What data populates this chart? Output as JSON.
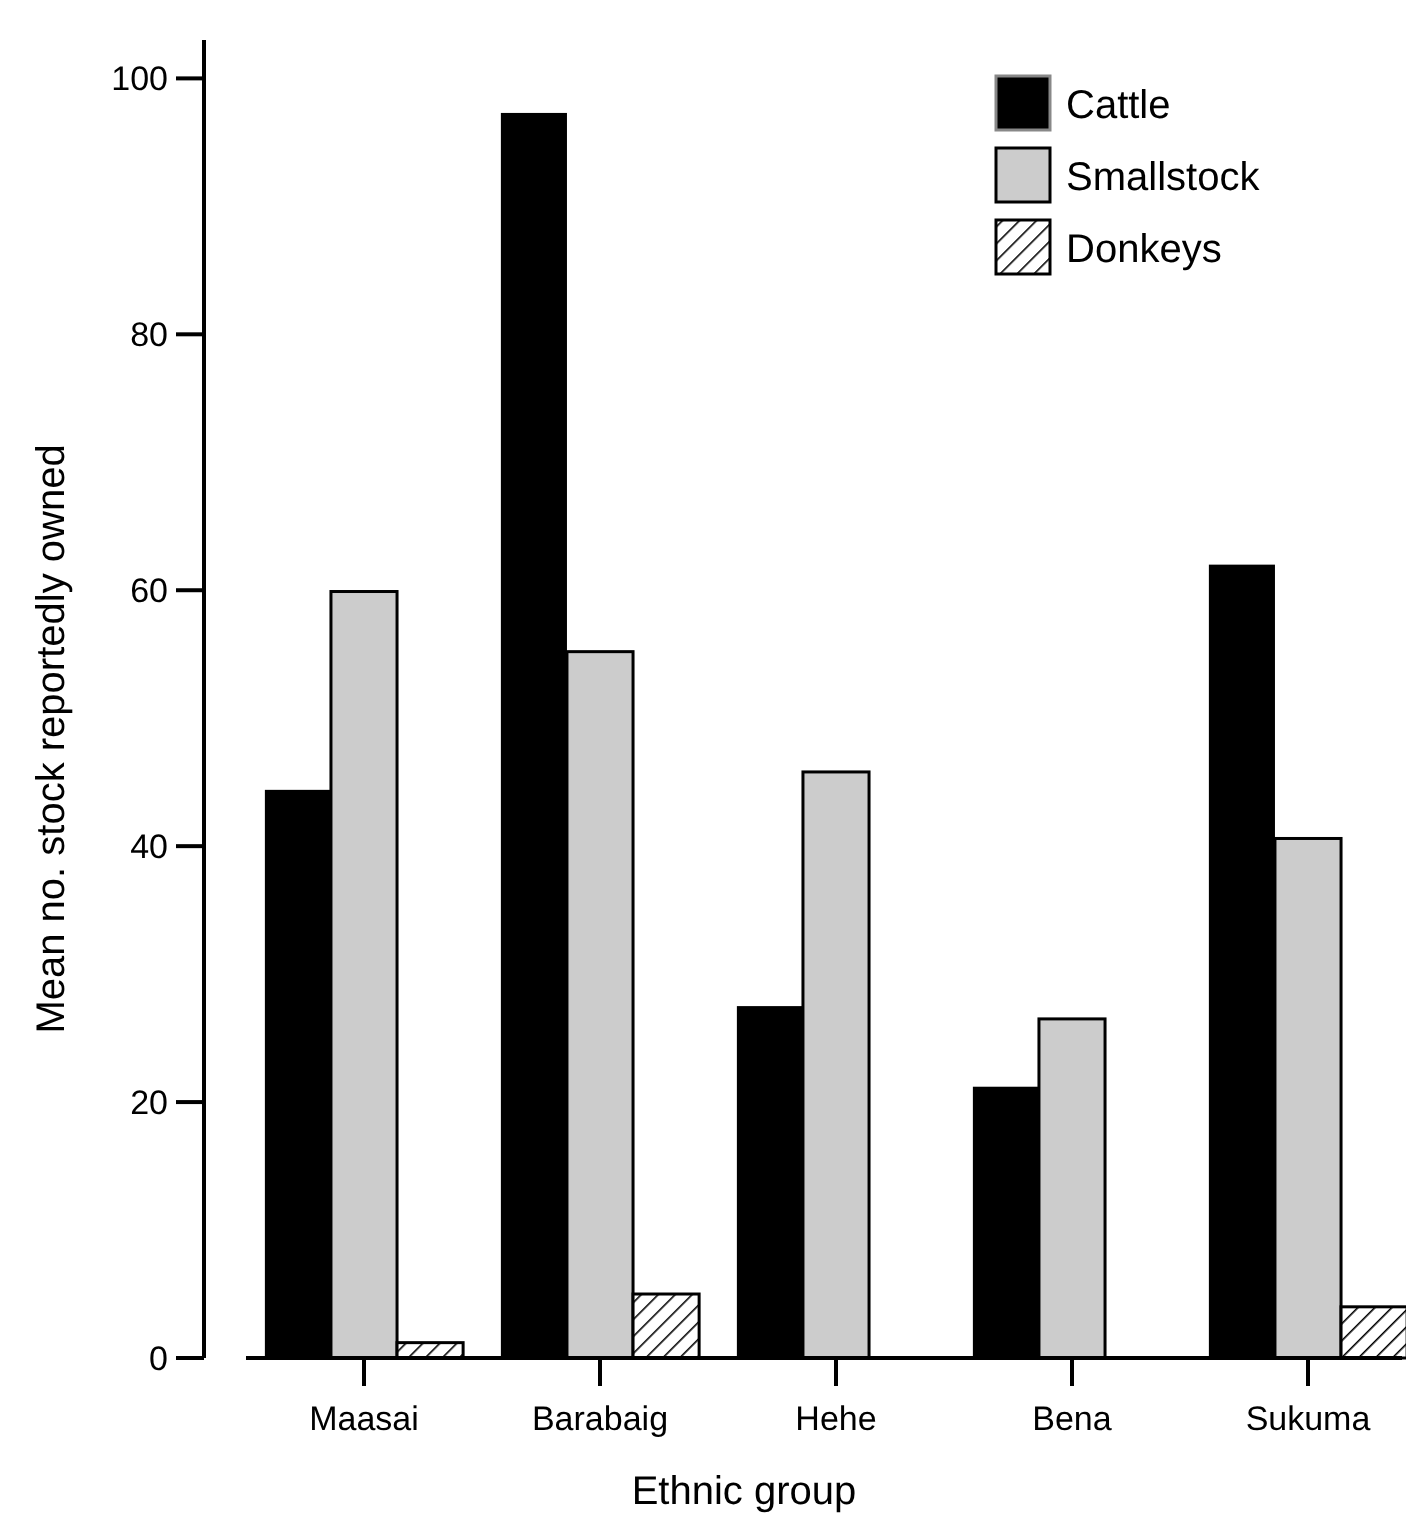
{
  "chart_data": {
    "type": "bar",
    "xlabel": "Ethnic group",
    "ylabel": "Mean no. stock reportedly owned",
    "categories": [
      "Maasai",
      "Barabaig",
      "Hehe",
      "Bena",
      "Sukuma"
    ],
    "series": [
      {
        "name": "Cattle",
        "color": "#000000",
        "values": [
          44.4,
          97.3,
          27.5,
          21.2,
          62.0
        ]
      },
      {
        "name": "Smallstock",
        "color": "#cccccc",
        "values": [
          59.9,
          55.2,
          45.8,
          26.5,
          40.6
        ]
      },
      {
        "name": "Donkeys",
        "color": "#000000",
        "values": [
          1.2,
          5.0,
          0,
          0,
          4.0
        ]
      }
    ],
    "ylim": [
      0,
      103
    ],
    "yticks": [
      0,
      20,
      40,
      60,
      80,
      100
    ],
    "grid": false,
    "legend": "top right"
  }
}
